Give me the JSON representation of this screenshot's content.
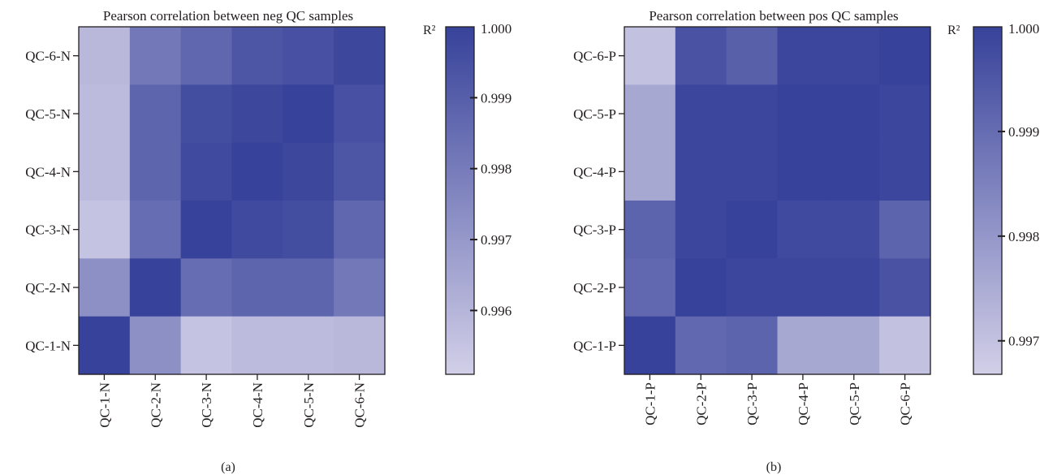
{
  "colors": {
    "high": "#37429a",
    "low": "#d2cfe8",
    "text": "#231f20",
    "axis": "#231f20"
  },
  "chart_data": [
    {
      "type": "heatmap",
      "panel_label": "(a)",
      "title": "Pearson correlation between neg QC samples",
      "colorbar_label": "R²",
      "colorbar_range": [
        0.9951,
        1.0
      ],
      "colorbar_ticks": [
        {
          "value": 1.0,
          "label": "1.000"
        },
        {
          "value": 0.999,
          "label": "0.999"
        },
        {
          "value": 0.998,
          "label": "0.998"
        },
        {
          "value": 0.997,
          "label": "0.997"
        },
        {
          "value": 0.996,
          "label": "0.996"
        }
      ],
      "x_categories": [
        "QC-1-N",
        "QC-2-N",
        "QC-3-N",
        "QC-4-N",
        "QC-5-N",
        "QC-6-N"
      ],
      "y_categories": [
        "QC-6-N",
        "QC-5-N",
        "QC-4-N",
        "QC-3-N",
        "QC-2-N",
        "QC-1-N"
      ],
      "values": [
        [
          0.9959,
          0.9981,
          0.9987,
          0.9993,
          0.9995,
          0.9998
        ],
        [
          0.9958,
          0.9988,
          0.9996,
          0.9998,
          1.0,
          0.9995
        ],
        [
          0.9958,
          0.9988,
          0.9997,
          1.0,
          0.9998,
          0.9993
        ],
        [
          0.9955,
          0.9985,
          1.0,
          0.9997,
          0.9996,
          0.9987
        ],
        [
          0.9973,
          1.0,
          0.9985,
          0.9988,
          0.9988,
          0.9981
        ],
        [
          1.0,
          0.9973,
          0.9955,
          0.9958,
          0.9958,
          0.9959
        ]
      ]
    },
    {
      "type": "heatmap",
      "panel_label": "(b)",
      "title": "Pearson correlation between pos QC samples",
      "colorbar_label": "R²",
      "colorbar_range": [
        0.99668,
        1.0
      ],
      "colorbar_ticks": [
        {
          "value": 1.0,
          "label": "1.000"
        },
        {
          "value": 0.999,
          "label": "0.999"
        },
        {
          "value": 0.998,
          "label": "0.998"
        },
        {
          "value": 0.997,
          "label": "0.997"
        }
      ],
      "x_categories": [
        "QC-1-P",
        "QC-2-P",
        "QC-3-P",
        "QC-4-P",
        "QC-5-P",
        "QC-6-P"
      ],
      "y_categories": [
        "QC-6-P",
        "QC-5-P",
        "QC-4-P",
        "QC-3-P",
        "QC-2-P",
        "QC-1-P"
      ],
      "values": [
        [
          0.997,
          0.9996,
          0.9993,
          0.9999,
          0.9999,
          1.0
        ],
        [
          0.9976,
          0.9999,
          0.9999,
          1.0,
          1.0,
          0.9999
        ],
        [
          0.9976,
          0.9999,
          0.9999,
          1.0,
          1.0,
          0.9999
        ],
        [
          0.9992,
          0.9999,
          1.0,
          0.9998,
          0.9998,
          0.9992
        ],
        [
          0.9991,
          1.0,
          0.9999,
          0.9999,
          0.9999,
          0.9996
        ],
        [
          1.0,
          0.9991,
          0.9992,
          0.9976,
          0.9976,
          0.997
        ]
      ]
    }
  ]
}
